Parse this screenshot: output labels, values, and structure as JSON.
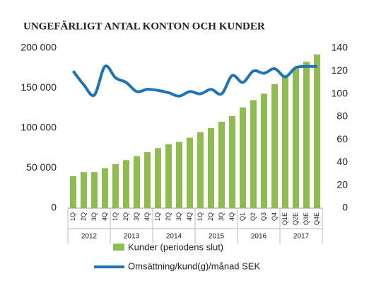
{
  "chart_data": {
    "type": "bar_line",
    "title": "UNGEFÄRLIGT ANTAL KONTON OCH KUNDER",
    "categories": [
      "1Q",
      "2Q",
      "3Q",
      "4Q",
      "1Q",
      "2Q",
      "3Q",
      "4Q",
      "1Q",
      "2Q",
      "3Q",
      "4Q",
      "1Q",
      "2Q",
      "3Q",
      "4Q",
      "Q1",
      "Q2",
      "Q3",
      "Q4",
      "Q1E",
      "Q2E",
      "Q3E",
      "Q4E"
    ],
    "groups": [
      "2012",
      "2013",
      "2014",
      "2015",
      "2016",
      "2017"
    ],
    "series": [
      {
        "name": "Kunder (periodens slut)",
        "color": "#8fbc4f",
        "axis": "y",
        "values": [
          40000,
          45000,
          45000,
          50000,
          55000,
          60000,
          65000,
          70000,
          75000,
          80000,
          83000,
          88000,
          95000,
          100000,
          108000,
          115000,
          126000,
          135000,
          143000,
          155000,
          165000,
          175000,
          183000,
          192000
        ]
      },
      {
        "name": "Omsättning/kund(g)/månad SEK",
        "color": "#1f74b5",
        "axis": "y2",
        "values": [
          120,
          108,
          99,
          124,
          114,
          110,
          102,
          104,
          103,
          101,
          98,
          102,
          100,
          104,
          100,
          116,
          110,
          120,
          118,
          122,
          115,
          123,
          124,
          124
        ]
      }
    ],
    "ylim": [
      0,
      200000
    ],
    "yticks": [
      0,
      {
        "value": 50000,
        "label": "50 000"
      },
      {
        "value": 100000,
        "label": "100 000"
      },
      {
        "value": 150000,
        "label": "150 000"
      },
      {
        "value": 200000,
        "label": "200 000"
      }
    ],
    "y2lim": [
      0,
      140
    ],
    "y2ticks": [
      0,
      20,
      40,
      60,
      80,
      100,
      120,
      140
    ]
  }
}
